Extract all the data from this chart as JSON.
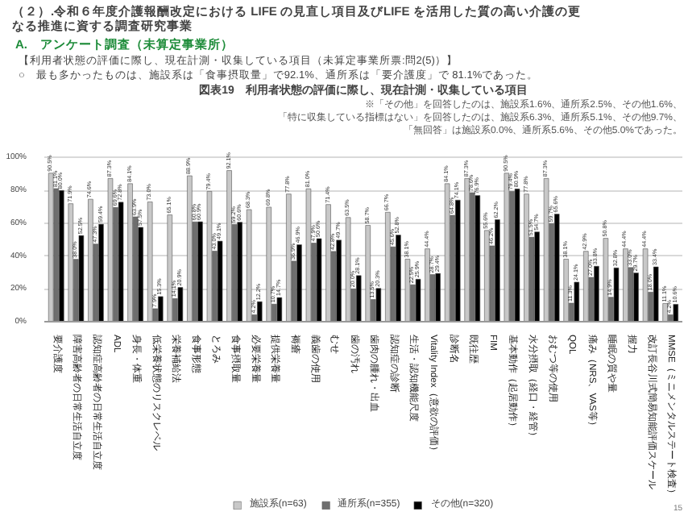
{
  "chart_data": {
    "type": "bar",
    "title": "図表19　利用者状態の評価に際し、現在計測・収集している項目",
    "categories": [
      "要介護度",
      "障害高齢者の日常生活自立度",
      "認知症高齢者の日常生活自立度",
      "ADL",
      "身長・体重",
      "低栄養状態のリスクレベル",
      "栄養補給法",
      "食事形態",
      "とろみ",
      "食事摂取量",
      "必要栄養量",
      "提供栄養量",
      "褥瘡",
      "義歯の使用",
      "むせ",
      "歯の汚れ",
      "歯肉の腫れ・出血",
      "認知症の診断",
      "生活・認知機能尺度",
      "Vitality Index（意欲の評価）",
      "診断名",
      "既往歴",
      "FIM",
      "基本動作（起居動作）",
      "水分摂取（経口・経管）",
      "おむつ等の使用",
      "QOL",
      "痛み（NRS、VAS等）",
      "睡眠の質や量",
      "握力",
      "改訂長谷川式簡易知能評価スケール",
      "MMSE（ミニメンタルステート検査）"
    ],
    "series": [
      {
        "name": "施設系(n=63)",
        "color": "#c8c8c8",
        "values": [
          90.5,
          71.9,
          74.6,
          87.3,
          84.1,
          73.0,
          65.1,
          88.9,
          79.4,
          92.1,
          68.3,
          69.8,
          77.8,
          81.0,
          71.4,
          63.5,
          58.7,
          66.7,
          38.1,
          44.4,
          84.1,
          87.3,
          55.6,
          90.5,
          77.8,
          87.3,
          38.1,
          42.9,
          50.8,
          44.4,
          44.4,
          11.1
        ],
        "value_labels": [
          "90.5%",
          "71.9%",
          "74.6%",
          "87.3%",
          "84.1%",
          "73.0%",
          "65.1%",
          "88.9%",
          "79.4%",
          "92.1%",
          "68.3%",
          "69.8%",
          "77.8%",
          "81.0%",
          "71.4%",
          "63.5%",
          "58.7%",
          "66.7%",
          "38.1%",
          "44.4%",
          "84.1%",
          "87.3%",
          "55.6%",
          "90.5%",
          "77.8%",
          "87.3%",
          "38.1%",
          "42.9%",
          "50.8%",
          "44.4%",
          "44.4%",
          "11.1%"
        ]
      },
      {
        "name": "通所系(n=355)",
        "color": "#6e6e6e",
        "values": [
          81.1,
          38.0,
          47.3,
          69.6,
          63.9,
          7.9,
          14.1,
          60.8,
          43.0,
          59.2,
          4.2,
          10.7,
          36.9,
          47.9,
          42.8,
          20.0,
          13.5,
          45.6,
          22.5,
          28.7,
          64.8,
          78.6,
          46.2,
          79.4,
          51.5,
          59.7,
          11.3,
          27.0,
          14.9,
          33.0,
          18.0,
          4.2
        ],
        "value_labels": [
          "81.1%",
          "38.0%",
          "47.3%",
          "69.6%",
          "63.9%",
          "7.9%",
          "14.1%",
          "60.8%",
          "43.0%",
          "59.2%",
          "4.2%",
          "10.7%",
          "36.9%",
          "47.9%",
          "42.8%",
          "20.0%",
          "13.5%",
          "45.6%",
          "22.5%",
          "28.7%",
          "64.8%",
          "78.6%",
          "46.2%",
          "79.4%",
          "51.5%",
          "59.7%",
          "11.3%",
          "27.0%",
          "14.9%",
          "33.0%",
          "18.0%",
          "4.2%"
        ]
      },
      {
        "name": "その他(n=320)",
        "color": "#000000",
        "values": [
          80.0,
          52.5,
          59.4,
          72.8,
          57.5,
          15.3,
          20.9,
          60.9,
          49.1,
          60.6,
          12.2,
          14.7,
          46.9,
          50.6,
          49.7,
          28.1,
          20.3,
          52.8,
          25.9,
          29.4,
          74.1,
          76.9,
          62.2,
          80.9,
          54.7,
          65.6,
          24.1,
          33.8,
          32.8,
          29.7,
          33.4,
          10.6
        ],
        "value_labels": [
          "80.0%",
          "52.5%",
          "59.4%",
          "72.8%",
          "57.5%",
          "15.3%",
          "20.9%",
          "60.9%",
          "49.1%",
          "60.6%",
          "12.2%",
          "14.7%",
          "46.9%",
          "50.6%",
          "49.7%",
          "28.1%",
          "20.3%",
          "52.8%",
          "25.9%",
          "29.4%",
          "74.1%",
          "76.9%",
          "62.2%",
          "80.9%",
          "54.7%",
          "65.6%",
          "24.1%",
          "33.8%",
          "32.8%",
          "29.7%",
          "33.4%",
          "10.6%"
        ]
      }
    ],
    "ylim": [
      0,
      100
    ],
    "yticks": [
      {
        "value": 0,
        "label": "0%"
      },
      {
        "value": 20,
        "label": "20%"
      },
      {
        "value": 40,
        "label": "40%"
      },
      {
        "value": 60,
        "label": "60%"
      },
      {
        "value": 80,
        "label": "80%"
      },
      {
        "value": 100,
        "label": "100%"
      }
    ],
    "grid": "y",
    "legend": "bottom",
    "annotations": [
      "（２）.令和６年度介護報酬改定における LIFE の見直し項目及びLIFE を活用した質の高い介護の更なる推進に資する調査研究事業",
      "A.　アンケート調査（未算定事業所）",
      "【利用者状態の評価に際し、現在計測・収集している項目（未算定事業所票:問2(5)）】",
      "○　最も多かったものは、施設系は「食事摂取量」で92.1%、通所系は「要介護度」で 81.1%であった。",
      "※「その他」を回答したのは、施設系1.6%、通所系2.5%、その他1.6%、",
      "「特に収集している指標はない」を回答したのは、施設系6.3%、通所系5.1%、その他9.7%、",
      "「無回答」は施設系0.0%、通所系5.6%、その他5.0%であった。",
      "15"
    ]
  }
}
